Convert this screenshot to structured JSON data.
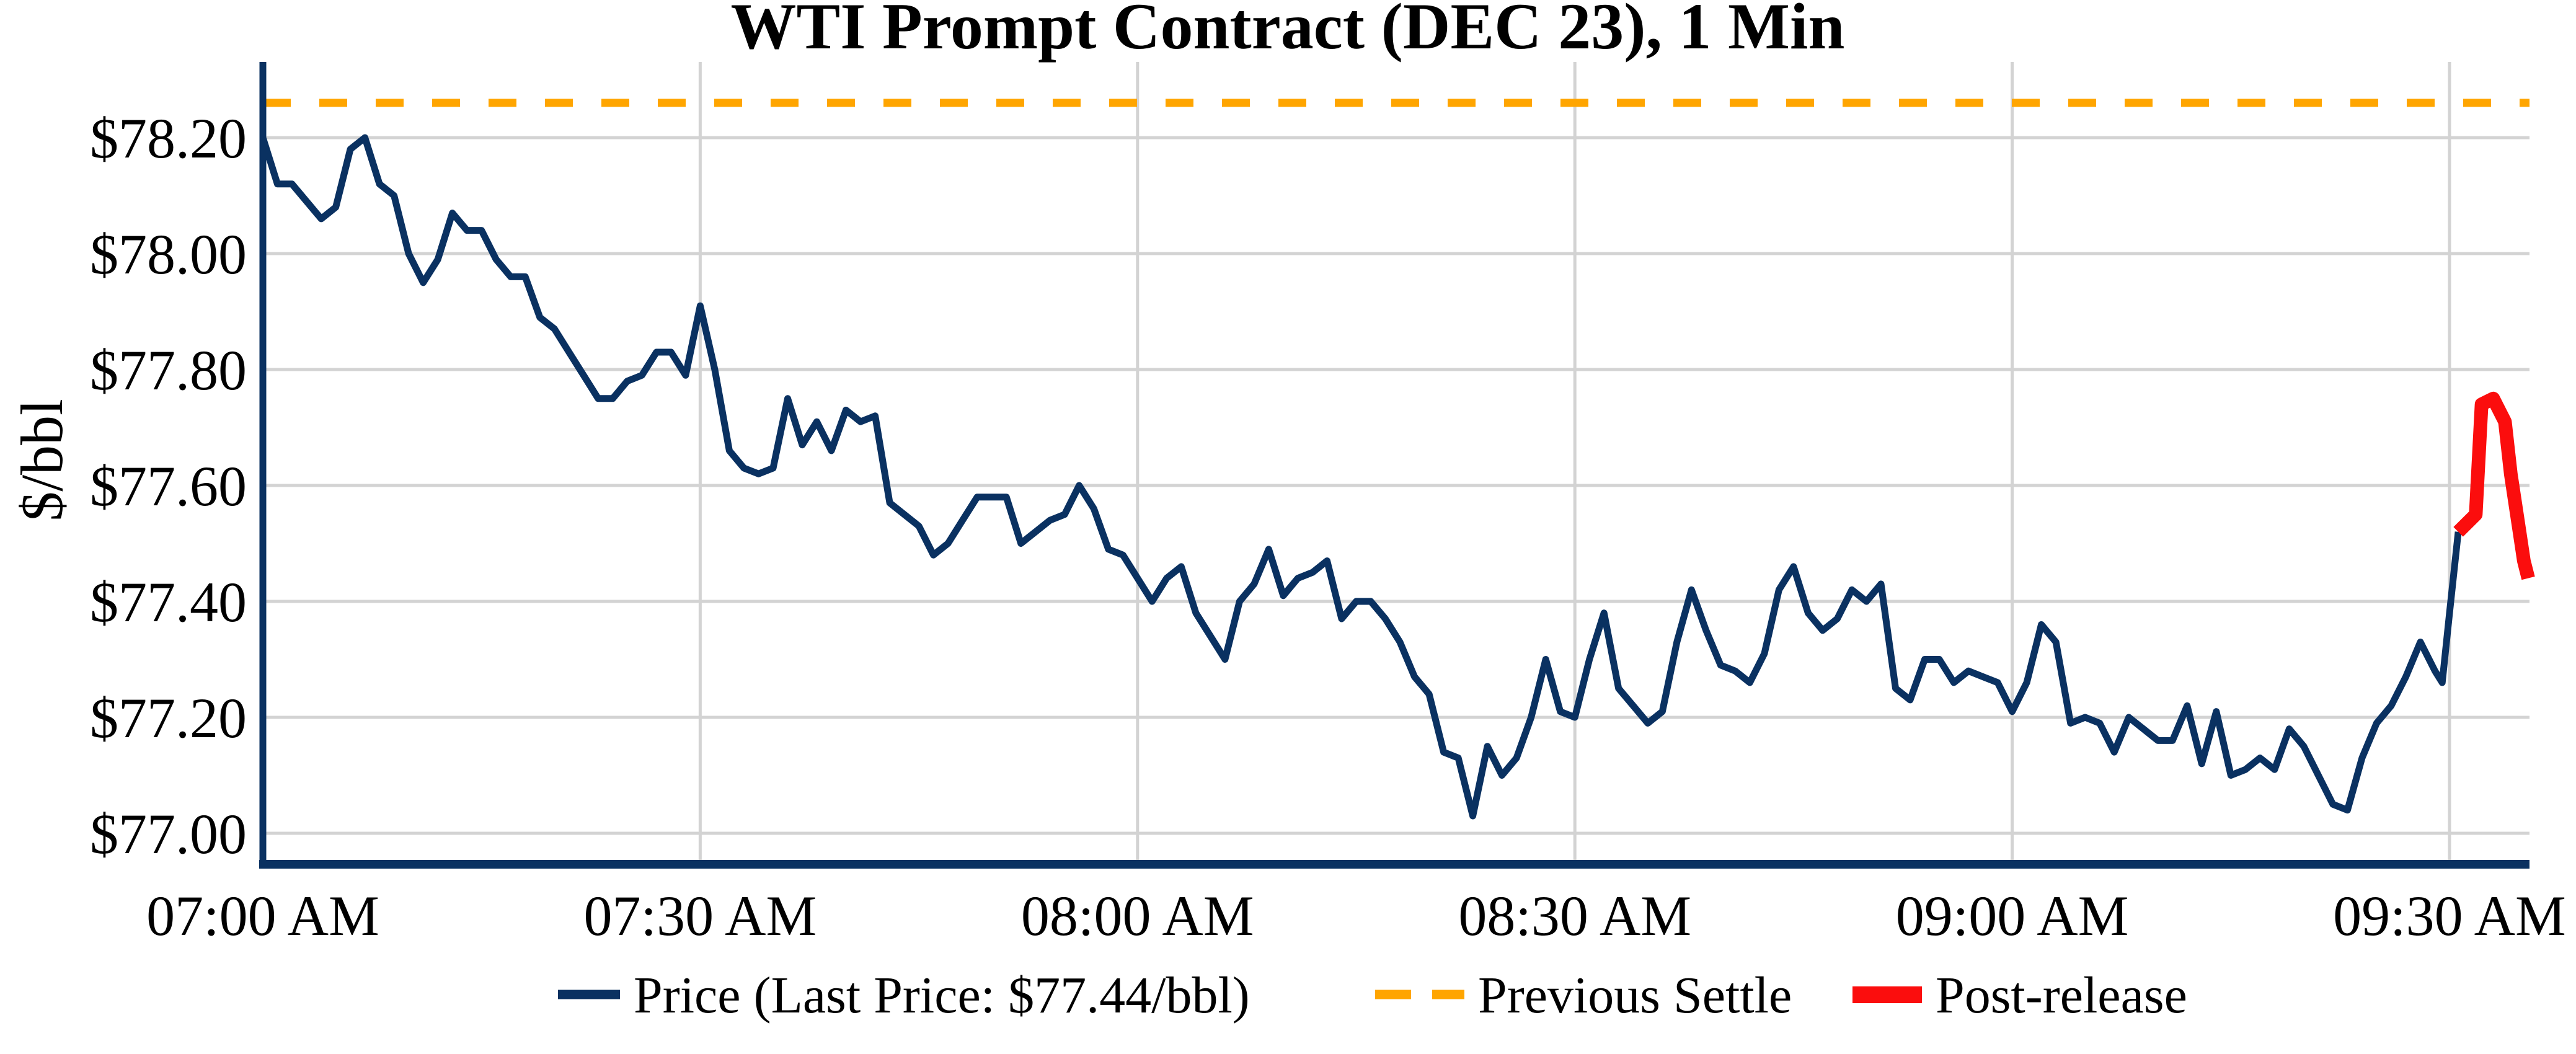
{
  "title": "WTI Prompt Contract (DEC 23), 1 Min",
  "y_axis_label": "$/bbl",
  "legend": {
    "price_label": "Price (Last Price: $77.44/bbl)",
    "settle_label": "Previous Settle",
    "post_release_label": "Post-release"
  },
  "colors": {
    "price_line": "#0a3161",
    "settle_line": "#ffa500",
    "post_release_line": "#fb0d0d",
    "grid": "#d3d3d3",
    "text": "#000000",
    "background": "#ffffff"
  },
  "chart_data": {
    "type": "line",
    "title": "WTI Prompt Contract (DEC 23), 1 Min",
    "xlabel": "",
    "ylabel": "$/bbl",
    "x_unit": "minutes after 07:00 AM",
    "xlim": [
      0,
      155.5
    ],
    "ylim": [
      76.95,
      78.33
    ],
    "grid": true,
    "legend_position": "below",
    "last_price": 77.44,
    "previous_settle": 78.26,
    "x_ticks": [
      {
        "t": 0,
        "label": "07:00 AM"
      },
      {
        "t": 30,
        "label": "07:30 AM"
      },
      {
        "t": 60,
        "label": "08:00 AM"
      },
      {
        "t": 90,
        "label": "08:30 AM"
      },
      {
        "t": 120,
        "label": "09:00 AM"
      },
      {
        "t": 150,
        "label": "09:30 AM"
      }
    ],
    "y_ticks": [
      {
        "v": 78.2,
        "label": "$78.20"
      },
      {
        "v": 78.0,
        "label": "$78.00"
      },
      {
        "v": 77.8,
        "label": "$77.80"
      },
      {
        "v": 77.6,
        "label": "$77.60"
      },
      {
        "v": 77.4,
        "label": "$77.40"
      },
      {
        "v": 77.2,
        "label": "$77.20"
      },
      {
        "v": 77.0,
        "label": "$77.00"
      }
    ],
    "series": [
      {
        "name": "Price (Last Price: $77.44/bbl)",
        "style": "solid",
        "points": [
          [
            0,
            78.2
          ],
          [
            1,
            78.12
          ],
          [
            2,
            78.12
          ],
          [
            3,
            78.09
          ],
          [
            4,
            78.06
          ],
          [
            5,
            78.08
          ],
          [
            6,
            78.18
          ],
          [
            7,
            78.2
          ],
          [
            8,
            78.12
          ],
          [
            9,
            78.1
          ],
          [
            10,
            78.0
          ],
          [
            11,
            77.95
          ],
          [
            12,
            77.99
          ],
          [
            13,
            78.07
          ],
          [
            14,
            78.04
          ],
          [
            15,
            78.04
          ],
          [
            16,
            77.99
          ],
          [
            17,
            77.96
          ],
          [
            18,
            77.96
          ],
          [
            19,
            77.89
          ],
          [
            20,
            77.87
          ],
          [
            21,
            77.83
          ],
          [
            22,
            77.79
          ],
          [
            23,
            77.75
          ],
          [
            24,
            77.75
          ],
          [
            25,
            77.78
          ],
          [
            26,
            77.79
          ],
          [
            27,
            77.83
          ],
          [
            28,
            77.83
          ],
          [
            29,
            77.79
          ],
          [
            30,
            77.91
          ],
          [
            31,
            77.8
          ],
          [
            32,
            77.66
          ],
          [
            33,
            77.63
          ],
          [
            34,
            77.62
          ],
          [
            35,
            77.63
          ],
          [
            36,
            77.75
          ],
          [
            37,
            77.67
          ],
          [
            38,
            77.71
          ],
          [
            39,
            77.66
          ],
          [
            40,
            77.73
          ],
          [
            41,
            77.71
          ],
          [
            42,
            77.72
          ],
          [
            43,
            77.57
          ],
          [
            44,
            77.55
          ],
          [
            45,
            77.53
          ],
          [
            46,
            77.48
          ],
          [
            47,
            77.5
          ],
          [
            48,
            77.54
          ],
          [
            49,
            77.58
          ],
          [
            50,
            77.58
          ],
          [
            51,
            77.58
          ],
          [
            52,
            77.5
          ],
          [
            53,
            77.52
          ],
          [
            54,
            77.54
          ],
          [
            55,
            77.55
          ],
          [
            56,
            77.6
          ],
          [
            57,
            77.56
          ],
          [
            58,
            77.49
          ],
          [
            59,
            77.48
          ],
          [
            60,
            77.44
          ],
          [
            61,
            77.4
          ],
          [
            62,
            77.44
          ],
          [
            63,
            77.46
          ],
          [
            64,
            77.38
          ],
          [
            65,
            77.34
          ],
          [
            66,
            77.3
          ],
          [
            67,
            77.4
          ],
          [
            68,
            77.43
          ],
          [
            69,
            77.49
          ],
          [
            70,
            77.41
          ],
          [
            71,
            77.44
          ],
          [
            72,
            77.45
          ],
          [
            73,
            77.47
          ],
          [
            74,
            77.37
          ],
          [
            75,
            77.4
          ],
          [
            76,
            77.4
          ],
          [
            77,
            77.37
          ],
          [
            78,
            77.33
          ],
          [
            79,
            77.27
          ],
          [
            80,
            77.24
          ],
          [
            81,
            77.14
          ],
          [
            82,
            77.13
          ],
          [
            83,
            77.03
          ],
          [
            84,
            77.15
          ],
          [
            85,
            77.1
          ],
          [
            86,
            77.13
          ],
          [
            87,
            77.2
          ],
          [
            88,
            77.3
          ],
          [
            89,
            77.21
          ],
          [
            90,
            77.2
          ],
          [
            91,
            77.3
          ],
          [
            92,
            77.38
          ],
          [
            93,
            77.25
          ],
          [
            94,
            77.22
          ],
          [
            95,
            77.19
          ],
          [
            96,
            77.21
          ],
          [
            97,
            77.33
          ],
          [
            98,
            77.42
          ],
          [
            99,
            77.35
          ],
          [
            100,
            77.29
          ],
          [
            101,
            77.28
          ],
          [
            102,
            77.26
          ],
          [
            103,
            77.31
          ],
          [
            104,
            77.42
          ],
          [
            105,
            77.46
          ],
          [
            106,
            77.38
          ],
          [
            107,
            77.35
          ],
          [
            108,
            77.37
          ],
          [
            109,
            77.42
          ],
          [
            110,
            77.4
          ],
          [
            111,
            77.43
          ],
          [
            112,
            77.25
          ],
          [
            113,
            77.23
          ],
          [
            114,
            77.3
          ],
          [
            115,
            77.3
          ],
          [
            116,
            77.26
          ],
          [
            117,
            77.28
          ],
          [
            118,
            77.27
          ],
          [
            119,
            77.26
          ],
          [
            120,
            77.21
          ],
          [
            121,
            77.26
          ],
          [
            122,
            77.36
          ],
          [
            123,
            77.33
          ],
          [
            124,
            77.19
          ],
          [
            125,
            77.2
          ],
          [
            126,
            77.19
          ],
          [
            127,
            77.14
          ],
          [
            128,
            77.2
          ],
          [
            129,
            77.18
          ],
          [
            130,
            77.16
          ],
          [
            131,
            77.16
          ],
          [
            132,
            77.22
          ],
          [
            133,
            77.12
          ],
          [
            134,
            77.21
          ],
          [
            135,
            77.1
          ],
          [
            136,
            77.11
          ],
          [
            137,
            77.13
          ],
          [
            138,
            77.11
          ],
          [
            139,
            77.18
          ],
          [
            140,
            77.15
          ],
          [
            141,
            77.1
          ],
          [
            142,
            77.05
          ],
          [
            143,
            77.04
          ],
          [
            144,
            77.13
          ],
          [
            145,
            77.19
          ],
          [
            146,
            77.22
          ],
          [
            147,
            77.27
          ],
          [
            148,
            77.33
          ],
          [
            149,
            77.28
          ],
          [
            149.5,
            77.26
          ],
          [
            150,
            77.38
          ],
          [
            150.6,
            77.52
          ]
        ]
      },
      {
        "name": "Previous Settle",
        "style": "dashed",
        "value": 78.26
      },
      {
        "name": "Post-release",
        "style": "solid-thick",
        "points": [
          [
            150.6,
            77.52
          ],
          [
            151.8,
            77.55
          ],
          [
            152.2,
            77.74
          ],
          [
            153.0,
            77.75
          ],
          [
            153.8,
            77.71
          ],
          [
            154.2,
            77.62
          ],
          [
            154.8,
            77.52
          ],
          [
            155.1,
            77.47
          ],
          [
            155.4,
            77.44
          ]
        ]
      }
    ]
  }
}
